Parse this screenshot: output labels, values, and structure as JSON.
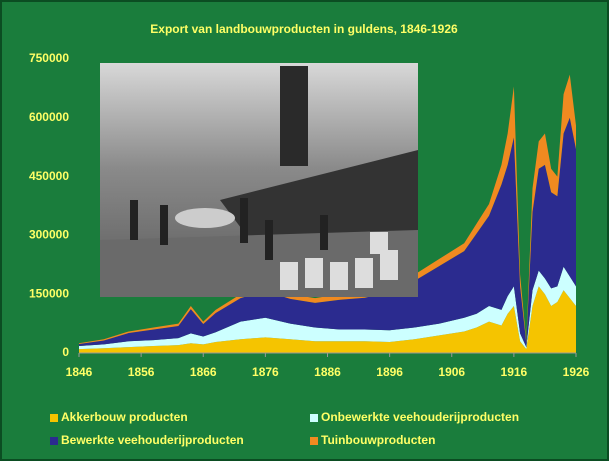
{
  "chart_data": {
    "type": "stacked-area",
    "title": "Export van landbouwproducten in guldens, 1846-1926",
    "x": [
      1846,
      1850,
      1854,
      1858,
      1862,
      1864,
      1866,
      1868,
      1872,
      1876,
      1880,
      1884,
      1888,
      1892,
      1896,
      1900,
      1904,
      1908,
      1910,
      1912,
      1914,
      1915,
      1916,
      1917,
      1918,
      1919,
      1920,
      1921,
      1922,
      1923,
      1924,
      1925,
      1926
    ],
    "series": [
      {
        "name": "Akkerbouw producten",
        "color": "#f5c400",
        "values": [
          10000,
          12000,
          15000,
          18000,
          20000,
          25000,
          22000,
          28000,
          35000,
          40000,
          35000,
          30000,
          30000,
          30000,
          28000,
          35000,
          45000,
          55000,
          65000,
          80000,
          70000,
          100000,
          120000,
          30000,
          10000,
          120000,
          170000,
          150000,
          120000,
          130000,
          160000,
          140000,
          120000
        ]
      },
      {
        "name": "Onbewerkte veehouderijproducten",
        "color": "#ccffff",
        "values": [
          8000,
          10000,
          15000,
          15000,
          18000,
          25000,
          20000,
          25000,
          45000,
          50000,
          40000,
          35000,
          30000,
          30000,
          30000,
          30000,
          30000,
          35000,
          35000,
          40000,
          40000,
          45000,
          50000,
          20000,
          5000,
          40000,
          40000,
          40000,
          45000,
          40000,
          60000,
          55000,
          50000
        ]
      },
      {
        "name": "Bewerkte veehouderijproducten",
        "color": "#2b2b8f",
        "values": [
          5000,
          10000,
          21000,
          27000,
          31000,
          62000,
          32000,
          49000,
          60000,
          68000,
          63000,
          63000,
          76000,
          81000,
          97000,
          119000,
          147000,
          170000,
          205000,
          230000,
          320000,
          335000,
          380000,
          120000,
          10000,
          200000,
          260000,
          290000,
          245000,
          230000,
          340000,
          405000,
          350000
        ]
      },
      {
        "name": "Tuinbouwproducten",
        "color": "#f08a20",
        "values": [
          2000,
          3000,
          4000,
          5000,
          6000,
          8000,
          6000,
          8000,
          10000,
          12000,
          12000,
          12000,
          14000,
          14000,
          15000,
          16000,
          18000,
          20000,
          25000,
          30000,
          50000,
          80000,
          130000,
          30000,
          5000,
          60000,
          70000,
          80000,
          60000,
          50000,
          100000,
          110000,
          60000
        ]
      }
    ],
    "xlim": [
      1846,
      1926
    ],
    "xticks": [
      1846,
      1856,
      1866,
      1876,
      1886,
      1896,
      1906,
      1916,
      1926
    ],
    "ylim": [
      0,
      750000
    ],
    "yticks": [
      0,
      150000,
      300000,
      450000,
      600000,
      750000
    ],
    "grid": false
  }
}
